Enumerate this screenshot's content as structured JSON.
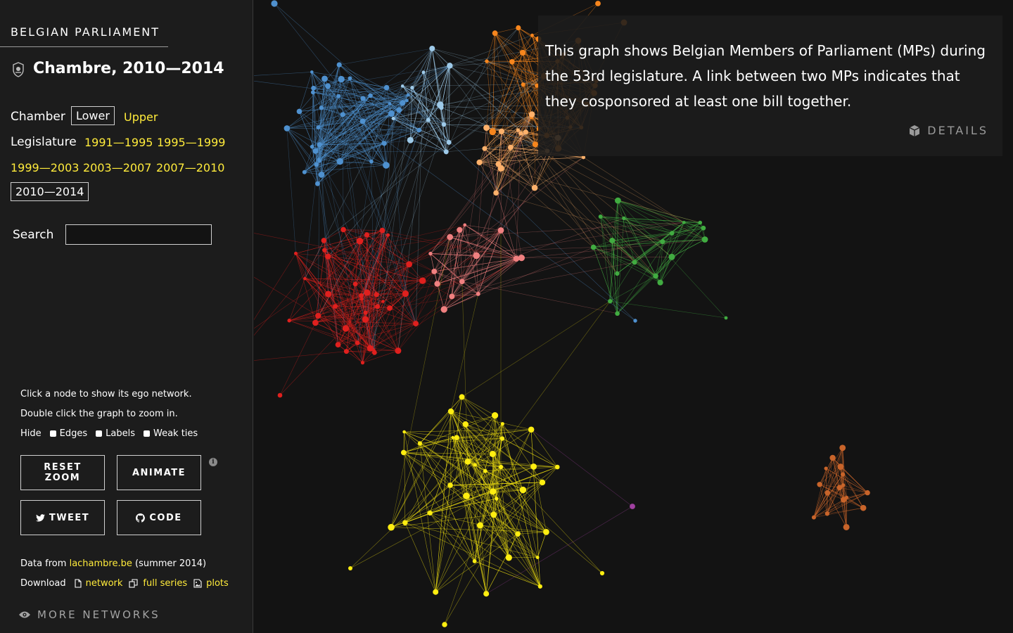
{
  "sidebar": {
    "site_title": "BELGIAN PARLIAMENT",
    "legislature_title": "Chambre, 2010—2014",
    "chamber_label": "Chamber",
    "chamber_options": [
      "Lower",
      "Upper"
    ],
    "chamber_selected": "Lower",
    "legislature_label": "Legislature",
    "legislatures": [
      "1991—1995",
      "1995—1999",
      "1999—2003",
      "2003—2007",
      "2007—2010",
      "2010—2014"
    ],
    "legislature_selected": "2010—2014",
    "search_label": "Search",
    "search_value": "",
    "hint_click": "Click a node to show its ego network.",
    "hint_zoom": "Double click the graph to zoom in.",
    "hide_label": "Hide",
    "hide_options": [
      "Edges",
      "Labels",
      "Weak ties"
    ],
    "buttons": {
      "reset_zoom": "RESET ZOOM",
      "animate": "ANIMATE",
      "tweet": "TWEET",
      "code": "CODE"
    },
    "data_from_prefix": "Data from",
    "data_source": "lachambre.be",
    "data_from_suffix": "(summer 2014)",
    "download_label": "Download",
    "downloads": [
      "network",
      "full series",
      "plots"
    ],
    "more_networks": "MORE NETWORKS"
  },
  "infobox": {
    "description": "This graph shows Belgian Members of Parliament (MPs) during the 53rd legislature. A link between two MPs indicates that they cosponsored at least one bill together.",
    "details_label": "DETAILS"
  },
  "colors": {
    "background": "#131313",
    "sidebar": "#1c1c1c",
    "link_yellow": "#ffeb3b",
    "groups": {
      "blue": "#4f91cf",
      "lightblue": "#9ecae9",
      "orange": "#f7861d",
      "lightorange": "#fdb16b",
      "green": "#41ac41",
      "red": "#e0201e",
      "pink": "#f08080",
      "yellow": "#ffee11",
      "brown": "#c8642a",
      "purple": "#a040a0"
    }
  },
  "icons": [
    "party-seal-icon",
    "cube-icon",
    "twitter-icon",
    "github-icon",
    "file-icon",
    "copy-icon",
    "image-icon",
    "eye-icon",
    "info-icon"
  ]
}
